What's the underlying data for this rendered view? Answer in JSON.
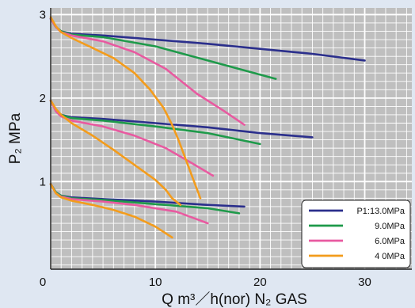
{
  "chart_data": {
    "type": "line",
    "title": "",
    "xlabel": "Q  m³／h(nor)  N₂ GAS",
    "ylabel": "P₂  MPa",
    "xlim": [
      0,
      34.5
    ],
    "ylim": [
      -0.05,
      3.08
    ],
    "x_ticks": [
      0,
      10,
      20,
      30
    ],
    "y_ticks": [
      1,
      2,
      3
    ],
    "tick_labels_x": [
      "0",
      "10",
      "20",
      "30"
    ],
    "tick_labels_y": [
      "1",
      "2",
      "3"
    ],
    "grid": true,
    "minor_grid_step_x": 1,
    "minor_grid_step_y": 0.1,
    "legend_position": "bottom-right",
    "series": [
      {
        "name": "P1:13.0MPa",
        "color": "#2b2f8c",
        "curves": [
          {
            "x": [
              0,
              0.5,
              1,
              2,
              5,
              10,
              15,
              20,
              25,
              30
            ],
            "y": [
              2.95,
              2.85,
              2.8,
              2.77,
              2.75,
              2.7,
              2.65,
              2.59,
              2.53,
              2.45
            ]
          },
          {
            "x": [
              0,
              0.5,
              1,
              2,
              5,
              10,
              15,
              20,
              25
            ],
            "y": [
              1.97,
              1.85,
              1.8,
              1.77,
              1.75,
              1.7,
              1.65,
              1.58,
              1.53
            ]
          },
          {
            "x": [
              0,
              0.5,
              1,
              2,
              5,
              10,
              15,
              18.5
            ],
            "y": [
              0.97,
              0.87,
              0.83,
              0.81,
              0.79,
              0.76,
              0.72,
              0.7
            ]
          }
        ]
      },
      {
        "name": "9.0MPa",
        "color": "#1e9a4a",
        "curves": [
          {
            "x": [
              0,
              0.5,
              1,
              2,
              5,
              10,
              15,
              21.5
            ],
            "y": [
              2.95,
              2.85,
              2.8,
              2.76,
              2.73,
              2.62,
              2.45,
              2.23
            ]
          },
          {
            "x": [
              0,
              0.5,
              1,
              2,
              5,
              10,
              15,
              20
            ],
            "y": [
              1.97,
              1.85,
              1.8,
              1.76,
              1.73,
              1.66,
              1.58,
              1.45
            ]
          },
          {
            "x": [
              0,
              0.5,
              1,
              2,
              5,
              10,
              15,
              18
            ],
            "y": [
              0.97,
              0.87,
              0.83,
              0.8,
              0.78,
              0.73,
              0.68,
              0.62
            ]
          }
        ]
      },
      {
        "name": "6.0MPa",
        "color": "#e85aa0",
        "curves": [
          {
            "x": [
              0,
              0.5,
              1,
              2,
              5,
              8,
              11,
              14,
              16.5,
              18.5
            ],
            "y": [
              2.95,
              2.85,
              2.79,
              2.75,
              2.68,
              2.55,
              2.35,
              2.05,
              1.85,
              1.68
            ]
          },
          {
            "x": [
              0,
              0.5,
              1,
              2,
              5,
              8,
              11,
              13.5,
              15.5
            ],
            "y": [
              1.97,
              1.84,
              1.78,
              1.73,
              1.66,
              1.55,
              1.4,
              1.22,
              1.07
            ]
          },
          {
            "x": [
              0,
              0.5,
              1,
              2,
              5,
              8,
              12,
              15
            ],
            "y": [
              0.97,
              0.86,
              0.82,
              0.79,
              0.76,
              0.72,
              0.64,
              0.5
            ]
          }
        ]
      },
      {
        "name": "4 0MPa",
        "color": "#f39c1c",
        "curves": [
          {
            "x": [
              0,
              0.5,
              1,
              2,
              4,
              6,
              8,
              9.5,
              10.8,
              11.6,
              12.2,
              12.8,
              13.4,
              14.3
            ],
            "y": [
              2.97,
              2.86,
              2.79,
              2.72,
              2.6,
              2.48,
              2.3,
              2.1,
              1.88,
              1.68,
              1.5,
              1.3,
              1.1,
              0.8
            ]
          },
          {
            "x": [
              0,
              0.5,
              1,
              2,
              4,
              6,
              8,
              10,
              11,
              11.6,
              12.4
            ],
            "y": [
              1.97,
              1.87,
              1.8,
              1.7,
              1.55,
              1.38,
              1.2,
              1.02,
              0.9,
              0.8,
              0.72
            ]
          },
          {
            "x": [
              0,
              0.5,
              1,
              2,
              4,
              6,
              8,
              10,
              11.6
            ],
            "y": [
              0.97,
              0.86,
              0.81,
              0.77,
              0.72,
              0.66,
              0.58,
              0.46,
              0.33
            ]
          }
        ]
      }
    ]
  },
  "colors": {
    "page_background": "#dfe7f2",
    "plot_background": "#bfbfbf",
    "minor_grid": "#ffffff",
    "major_grid": "#ffffff",
    "legend_background": "#ffffff"
  }
}
